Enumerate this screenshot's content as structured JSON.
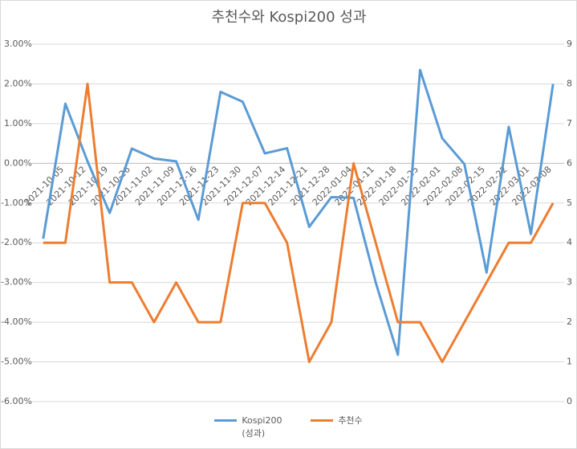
{
  "chart_data": {
    "type": "line",
    "title": "추천수와 Kospi200 성과",
    "categories": [
      "2021-10-05",
      "2021-10-12",
      "2021-10-19",
      "2021-10-26",
      "2021-11-02",
      "2021-11-09",
      "2021-11-16",
      "2021-11-23",
      "2021-11-30",
      "2021-12-07",
      "2021-12-14",
      "2021-12-21",
      "2021-12-28",
      "2022-01-04",
      "2022-01-11",
      "2022-01-18",
      "2022-01-25",
      "2022-02-01",
      "2022-02-08",
      "2022-02-15",
      "2022-02-22",
      "2022-03-01",
      "2022-03-08",
      null
    ],
    "series": [
      {
        "name": "Kospi200 (성과)",
        "color": "#5b9bd5",
        "values": [
          -1.9,
          1.5,
          0.05,
          -1.25,
          0.37,
          0.12,
          0.05,
          -1.42,
          1.8,
          1.55,
          0.25,
          0.38,
          -1.6,
          -0.85,
          -0.87,
          -3.0,
          -4.82,
          2.35,
          0.63,
          -0.02,
          -2.75,
          0.92,
          -1.78,
          2.0
        ]
      },
      {
        "name": "추천수",
        "color": "#ed7d31",
        "axis": "y2",
        "values": [
          4,
          4,
          8,
          3,
          3,
          2,
          3,
          2,
          2,
          5,
          5,
          4,
          1,
          2,
          6,
          4,
          2,
          2,
          1,
          2,
          3,
          4,
          4,
          5
        ]
      }
    ],
    "ylim": [
      -6,
      3
    ],
    "yticks": [
      {
        "value": -6,
        "label": "-6.00%"
      },
      {
        "value": -5,
        "label": "-5.00%"
      },
      {
        "value": -4,
        "label": "-4.00%"
      },
      {
        "value": -3,
        "label": "-3.00%"
      },
      {
        "value": -2,
        "label": "-2.00%"
      },
      {
        "value": -1,
        "label": "-1.00%"
      },
      {
        "value": 0,
        "label": "0.00%"
      },
      {
        "value": 1,
        "label": "1.00%"
      },
      {
        "value": 2,
        "label": "2.00%"
      },
      {
        "value": 3,
        "label": "3.00%"
      }
    ],
    "y2lim": [
      0,
      9
    ],
    "y2ticks": [
      0,
      1,
      2,
      3,
      4,
      5,
      6,
      7,
      8,
      9
    ],
    "grid": true
  }
}
